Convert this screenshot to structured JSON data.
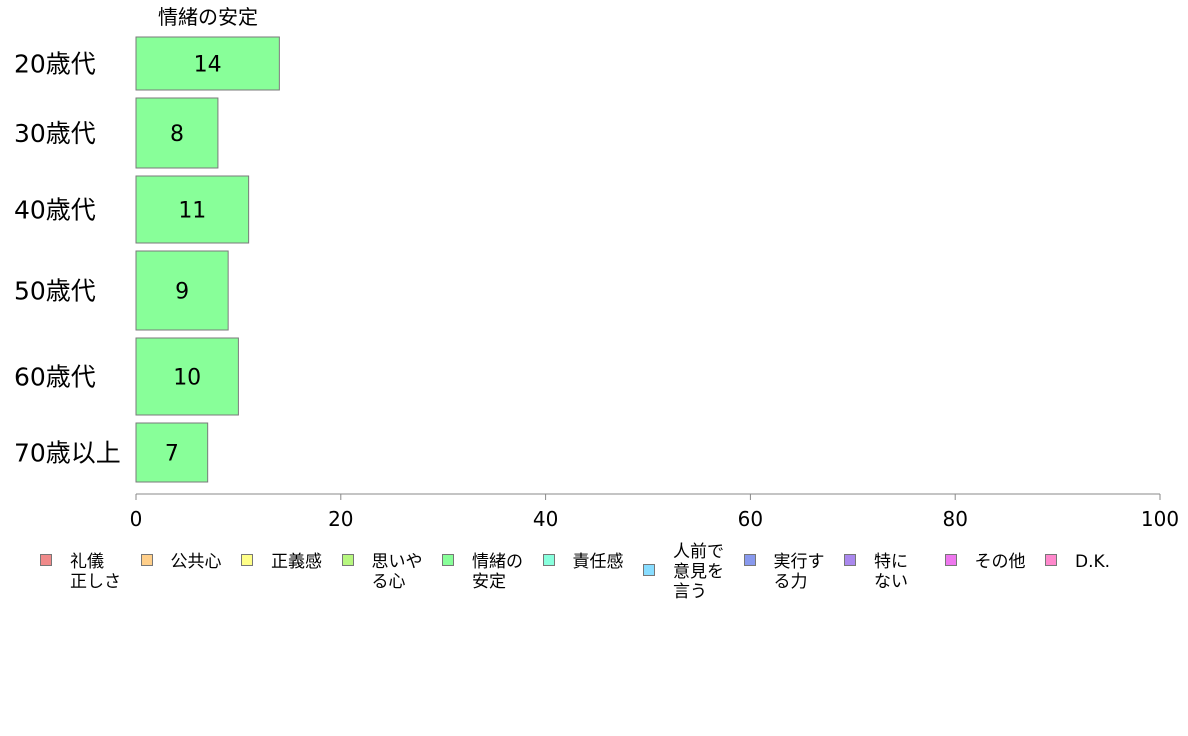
{
  "chart_data": {
    "type": "bar",
    "orientation": "horizontal",
    "title": "情緒の安定",
    "categories": [
      "20歳代",
      "30歳代",
      "40歳代",
      "50歳代",
      "60歳代",
      "70歳以上"
    ],
    "values": [
      14,
      8,
      11,
      9,
      10,
      7
    ],
    "xlim": [
      0,
      100
    ],
    "xticks": [
      0,
      20,
      40,
      60,
      80,
      100
    ],
    "bar_color": "#88ff99",
    "grid": false,
    "legend_position": "bottom"
  },
  "legend": [
    {
      "label": "礼儀\n正しさ",
      "color": "#f08a8a"
    },
    {
      "label": "公共心",
      "color": "#ffcf8a"
    },
    {
      "label": "正義感",
      "color": "#ffff88"
    },
    {
      "label": "思いや\nる心",
      "color": "#b7f77f"
    },
    {
      "label": "情緒の\n安定",
      "color": "#88ff99"
    },
    {
      "label": "責任感",
      "color": "#88ffdd"
    },
    {
      "label": "人前で\n意見を\n言う",
      "color": "#88ddff"
    },
    {
      "label": "実行す\nる力",
      "color": "#8899ee"
    },
    {
      "label": "特に\nない",
      "color": "#aa88ee"
    },
    {
      "label": "その他",
      "color": "#ee77ee"
    },
    {
      "label": "D.K.",
      "color": "#ff88cc"
    }
  ]
}
